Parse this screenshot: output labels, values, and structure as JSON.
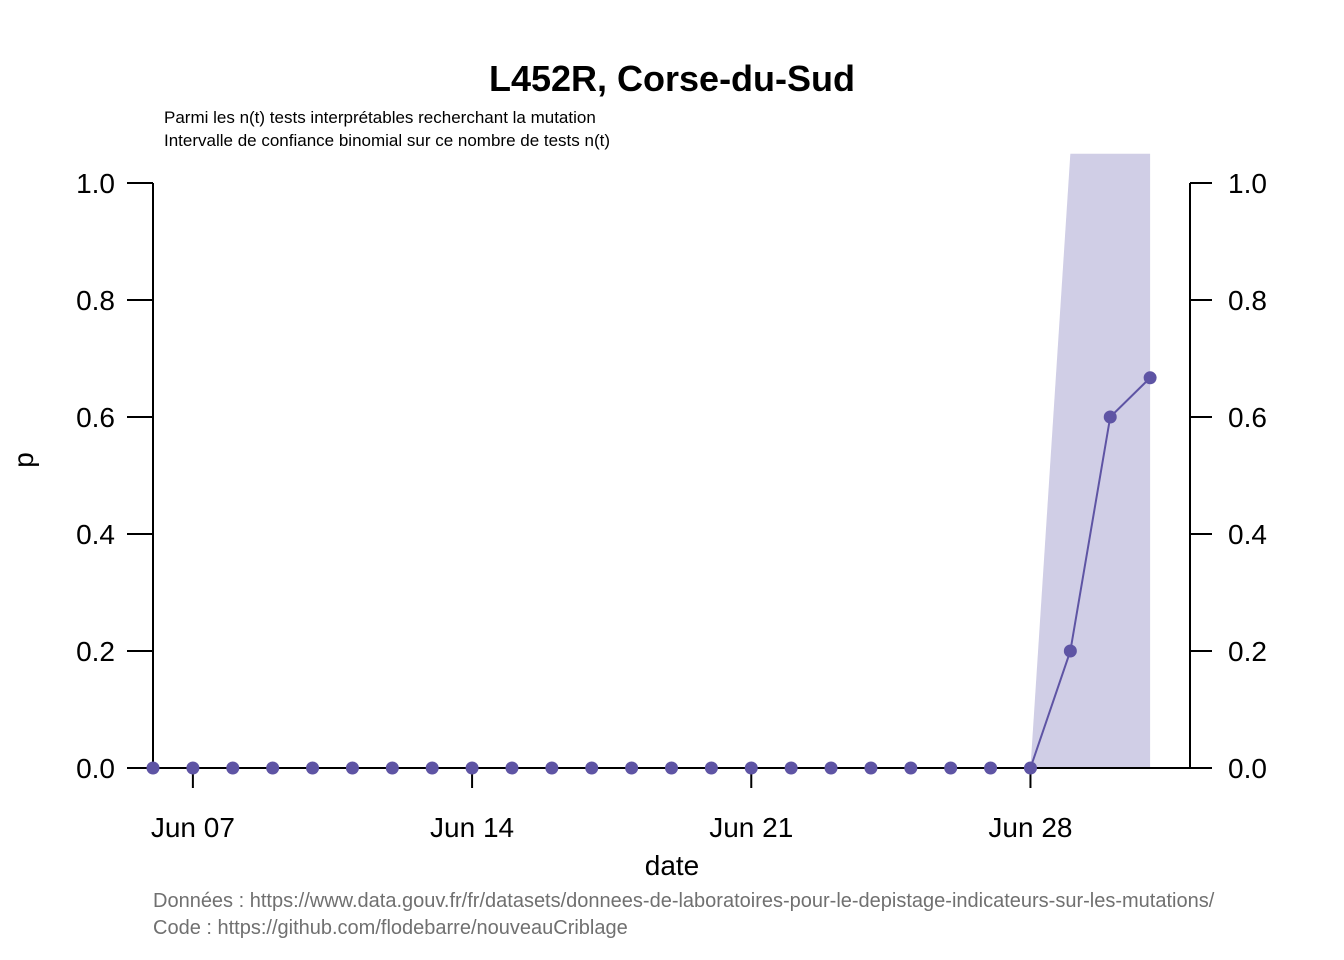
{
  "chart_data": {
    "type": "line",
    "title": "L452R, Corse-du-Sud",
    "subtitle_lines": [
      "Parmi les n(t) tests interprétables recherchant la mutation",
      "Intervalle de confiance binomial sur ce nombre de tests n(t)"
    ],
    "xlabel": "date",
    "ylabel": "p",
    "ylim": [
      0,
      1
    ],
    "yticks": [
      0,
      0.2,
      0.4,
      0.6,
      0.8,
      1
    ],
    "ytick_labels": [
      "0.0",
      "0.2",
      "0.4",
      "0.6",
      "0.8",
      "1.0"
    ],
    "x_range": [
      "2021-06-06",
      "2021-07-02"
    ],
    "xticks": [
      "2021-06-07",
      "2021-06-14",
      "2021-06-21",
      "2021-06-28"
    ],
    "xtick_labels": [
      "Jun 07",
      "Jun 14",
      "Jun 21",
      "Jun 28"
    ],
    "series": [
      {
        "color": "#5e54a4",
        "x": [
          "2021-06-06",
          "2021-06-07",
          "2021-06-08",
          "2021-06-09",
          "2021-06-10",
          "2021-06-11",
          "2021-06-12",
          "2021-06-13",
          "2021-06-14",
          "2021-06-15",
          "2021-06-16",
          "2021-06-17",
          "2021-06-18",
          "2021-06-19",
          "2021-06-20",
          "2021-06-21",
          "2021-06-22",
          "2021-06-23",
          "2021-06-24",
          "2021-06-25",
          "2021-06-26",
          "2021-06-27",
          "2021-06-28",
          "2021-06-29",
          "2021-06-30",
          "2021-07-01"
        ],
        "values": [
          0,
          0,
          0,
          0,
          0,
          0,
          0,
          0,
          0,
          0,
          0,
          0,
          0,
          0,
          0,
          0,
          0,
          0,
          0,
          0,
          0,
          0,
          0,
          0.2,
          0.6,
          0.667
        ]
      }
    ],
    "confidence_band": {
      "color": "#d0cee6",
      "x": [
        "2021-06-28",
        "2021-06-29",
        "2021-06-30",
        "2021-07-01"
      ],
      "lower": [
        0,
        0,
        0,
        0
      ],
      "upper": [
        0,
        1.05,
        1.05,
        1.05
      ]
    },
    "source_lines": [
      "Données : https://www.data.gouv.fr/fr/datasets/donnees-de-laboratoires-pour-le-depistage-indicateurs-sur-les-mutations/",
      "Code : https://github.com/flodebarre/nouveauCriblage"
    ]
  }
}
